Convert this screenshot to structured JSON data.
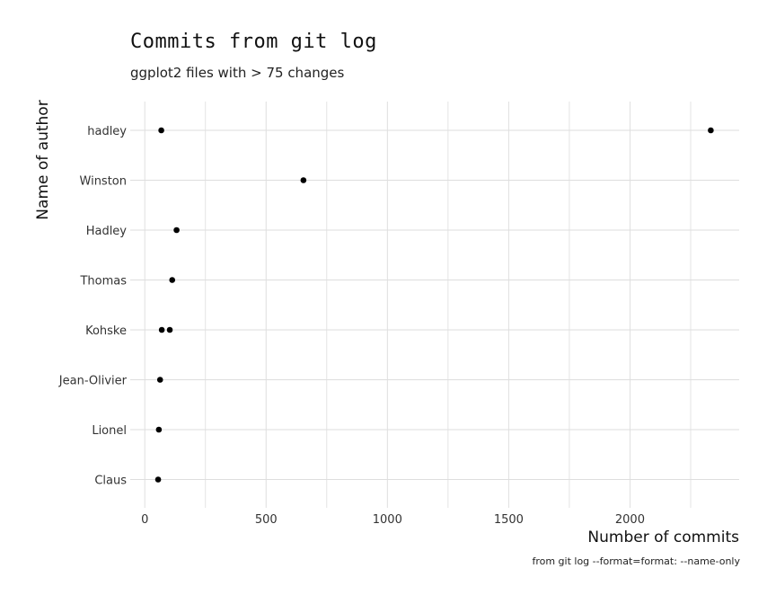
{
  "chart_data": {
    "type": "scatter",
    "title": "Commits from git log",
    "subtitle": "ggplot2 files with > 75 changes",
    "caption": "from git log --format=format: --name-only",
    "xlabel": "Number of commits",
    "ylabel": "Name of author",
    "xlim": [
      -60,
      2450
    ],
    "x_ticks": [
      0,
      500,
      1000,
      1500,
      2000
    ],
    "x_tick_labels": [
      "0",
      "500",
      "1000",
      "1500",
      "2000"
    ],
    "x_minor_ticks": [
      250,
      750,
      1250,
      1750,
      2250
    ],
    "categories": [
      "hadley",
      "Winston",
      "Hadley",
      "Thomas",
      "Kohske",
      "Jean-Olivier",
      "Lionel",
      "Claus"
    ],
    "points": [
      {
        "author": "hadley",
        "commits": 68
      },
      {
        "author": "hadley",
        "commits": 2333
      },
      {
        "author": "Winston",
        "commits": 654
      },
      {
        "author": "Hadley",
        "commits": 131
      },
      {
        "author": "Thomas",
        "commits": 113
      },
      {
        "author": "Kohske",
        "commits": 70
      },
      {
        "author": "Kohske",
        "commits": 103
      },
      {
        "author": "Jean-Olivier",
        "commits": 63
      },
      {
        "author": "Lionel",
        "commits": 58
      },
      {
        "author": "Claus",
        "commits": 55
      }
    ],
    "grid": true,
    "legend": "none",
    "point_color": "#000000",
    "grid_color": "#dedede"
  }
}
